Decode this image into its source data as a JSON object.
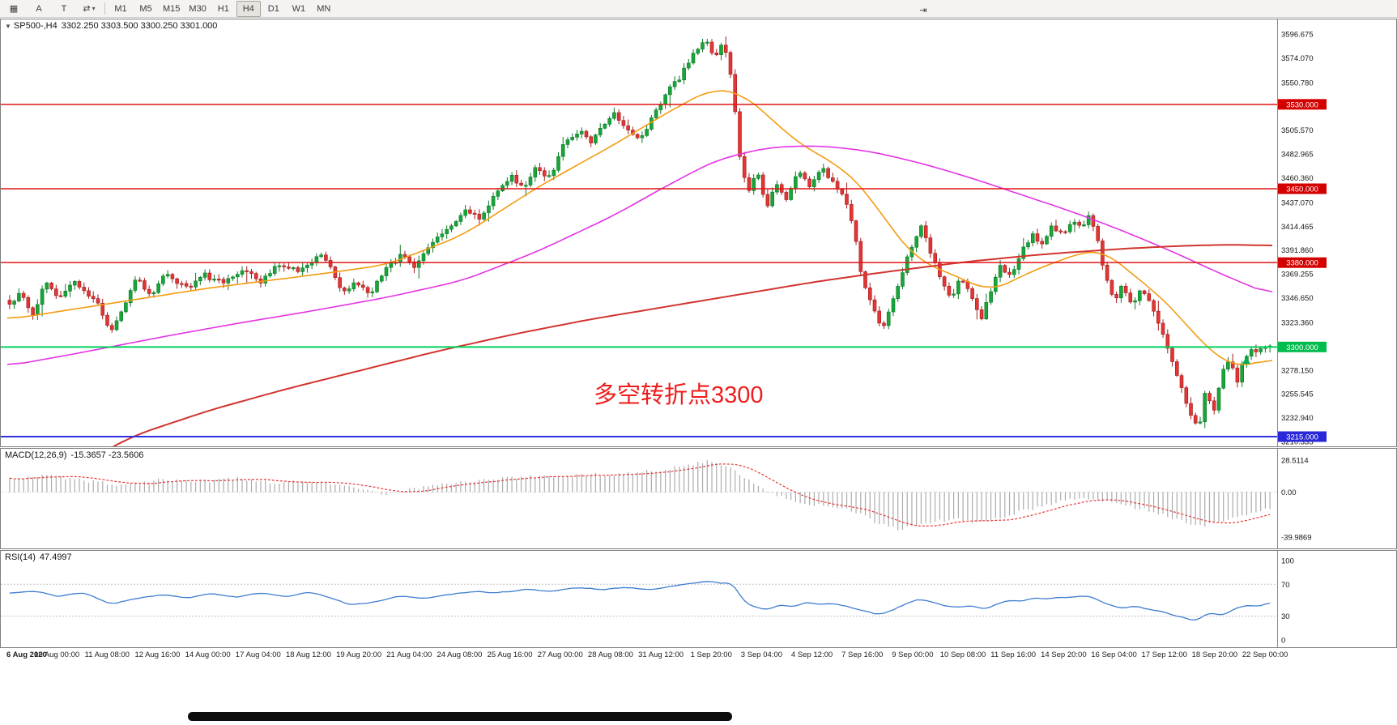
{
  "toolbar": {
    "left_icons": [
      {
        "name": "chart-grid-icon",
        "glyph": "▦"
      },
      {
        "name": "text-annotation-icon",
        "glyph": "A"
      },
      {
        "name": "text-box-icon",
        "glyph": "T"
      },
      {
        "name": "cycle-symbols-icon",
        "glyph": "⇄",
        "caret": "▾"
      }
    ],
    "timeframes": [
      "M1",
      "M5",
      "M15",
      "M30",
      "H1",
      "H4",
      "D1",
      "W1",
      "MN"
    ],
    "active_timeframe": "H4",
    "right_icons": [
      {
        "name": "chart-shift-icon",
        "glyph": "⇥"
      }
    ]
  },
  "price_panel": {
    "header": {
      "marker": "▼",
      "symbol": "SP500-,H4",
      "ohlc": "3302.250 3303.500 3300.250 3301.000"
    },
    "annotation": {
      "text": "多空转折点3300",
      "color": "#ee1c1c"
    },
    "y_ticks": [
      "3596.675",
      "3574.070",
      "3550.780",
      "3505.570",
      "3482.965",
      "3460.360",
      "3437.070",
      "3414.465",
      "3391.860",
      "3369.255",
      "3346.650",
      "3323.360",
      "3278.150",
      "3255.545",
      "3232.940",
      "3210.335"
    ],
    "levels": [
      {
        "label": "3530.000",
        "price": 3530,
        "color": "#d40000",
        "line": "#e01414",
        "width": 1.5
      },
      {
        "label": "3450.000",
        "price": 3450,
        "color": "#d40000",
        "line": "#e01414",
        "width": 1.5
      },
      {
        "label": "3380.000",
        "price": 3380,
        "color": "#d40000",
        "line": "#e01414",
        "width": 1.5
      },
      {
        "label": "3300.000",
        "price": 3300,
        "color": "#00bd4e",
        "line": "#00d25c",
        "width": 2
      },
      {
        "label": "3215.000",
        "price": 3215,
        "color": "#2828d8",
        "line": "#3030e0",
        "width": 2
      }
    ]
  },
  "chart_data": {
    "type": "candlestick",
    "symbol": "SP500-",
    "timeframe": "H4",
    "title": "SP500-,H4",
    "ohlc_current": {
      "open": 3302.25,
      "high": 3303.5,
      "low": 3300.25,
      "close": 3301.0
    },
    "x_range": {
      "start": "6 Aug 2020",
      "end": "22 Sep 2020"
    },
    "ylim": [
      3205.8,
      3610.5
    ],
    "num_candles": 272,
    "horizontal_levels": [
      3530,
      3450,
      3380,
      3300,
      3215
    ],
    "colors": {
      "bull_fill": "#19a53a",
      "bull_stroke": "#0b7a26",
      "bear_fill": "#e23535",
      "bear_stroke": "#a31d1d",
      "ma_fast": "#f39c12",
      "ma_mid": "#e333e3",
      "ma_slow": "#d1342f",
      "macd_hist": "#ababab",
      "macd_signal": "#e23b3b",
      "rsi_line": "#3f7cd0"
    },
    "close_anchors": [
      [
        0.0,
        3338
      ],
      [
        0.008,
        3352
      ],
      [
        0.018,
        3330
      ],
      [
        0.028,
        3360
      ],
      [
        0.04,
        3345
      ],
      [
        0.052,
        3362
      ],
      [
        0.062,
        3350
      ],
      [
        0.07,
        3340
      ],
      [
        0.08,
        3312
      ],
      [
        0.088,
        3332
      ],
      [
        0.1,
        3366
      ],
      [
        0.112,
        3350
      ],
      [
        0.125,
        3370
      ],
      [
        0.14,
        3356
      ],
      [
        0.155,
        3368
      ],
      [
        0.17,
        3360
      ],
      [
        0.185,
        3374
      ],
      [
        0.2,
        3362
      ],
      [
        0.215,
        3380
      ],
      [
        0.23,
        3371
      ],
      [
        0.245,
        3388
      ],
      [
        0.255,
        3374
      ],
      [
        0.265,
        3352
      ],
      [
        0.275,
        3363
      ],
      [
        0.285,
        3348
      ],
      [
        0.297,
        3372
      ],
      [
        0.31,
        3386
      ],
      [
        0.322,
        3377
      ],
      [
        0.335,
        3398
      ],
      [
        0.35,
        3412
      ],
      [
        0.362,
        3432
      ],
      [
        0.372,
        3420
      ],
      [
        0.385,
        3446
      ],
      [
        0.398,
        3462
      ],
      [
        0.408,
        3448
      ],
      [
        0.418,
        3472
      ],
      [
        0.428,
        3460
      ],
      [
        0.44,
        3492
      ],
      [
        0.452,
        3506
      ],
      [
        0.462,
        3495
      ],
      [
        0.472,
        3513
      ],
      [
        0.48,
        3522
      ],
      [
        0.49,
        3504
      ],
      [
        0.5,
        3495
      ],
      [
        0.512,
        3521
      ],
      [
        0.522,
        3542
      ],
      [
        0.532,
        3556
      ],
      [
        0.545,
        3582
      ],
      [
        0.553,
        3593
      ],
      [
        0.559,
        3575
      ],
      [
        0.566,
        3589
      ],
      [
        0.573,
        3556
      ],
      [
        0.579,
        3480
      ],
      [
        0.586,
        3446
      ],
      [
        0.593,
        3467
      ],
      [
        0.601,
        3432
      ],
      [
        0.609,
        3456
      ],
      [
        0.616,
        3438
      ],
      [
        0.625,
        3468
      ],
      [
        0.635,
        3450
      ],
      [
        0.645,
        3470
      ],
      [
        0.653,
        3456
      ],
      [
        0.661,
        3446
      ],
      [
        0.669,
        3418
      ],
      [
        0.677,
        3360
      ],
      [
        0.685,
        3335
      ],
      [
        0.693,
        3316
      ],
      [
        0.701,
        3346
      ],
      [
        0.709,
        3374
      ],
      [
        0.717,
        3400
      ],
      [
        0.723,
        3416
      ],
      [
        0.731,
        3390
      ],
      [
        0.739,
        3364
      ],
      [
        0.747,
        3344
      ],
      [
        0.755,
        3368
      ],
      [
        0.763,
        3350
      ],
      [
        0.771,
        3328
      ],
      [
        0.779,
        3356
      ],
      [
        0.787,
        3378
      ],
      [
        0.795,
        3364
      ],
      [
        0.803,
        3392
      ],
      [
        0.811,
        3406
      ],
      [
        0.819,
        3398
      ],
      [
        0.827,
        3416
      ],
      [
        0.835,
        3407
      ],
      [
        0.843,
        3421
      ],
      [
        0.851,
        3411
      ],
      [
        0.857,
        3426
      ],
      [
        0.863,
        3404
      ],
      [
        0.869,
        3368
      ],
      [
        0.876,
        3344
      ],
      [
        0.883,
        3358
      ],
      [
        0.891,
        3338
      ],
      [
        0.898,
        3356
      ],
      [
        0.905,
        3340
      ],
      [
        0.912,
        3320
      ],
      [
        0.92,
        3296
      ],
      [
        0.928,
        3268
      ],
      [
        0.936,
        3240
      ],
      [
        0.943,
        3221
      ],
      [
        0.949,
        3258
      ],
      [
        0.955,
        3238
      ],
      [
        0.961,
        3272
      ],
      [
        0.968,
        3288
      ],
      [
        0.974,
        3266
      ],
      [
        0.98,
        3292
      ],
      [
        0.988,
        3297
      ],
      [
        1.0,
        3301
      ]
    ],
    "ma_fast_anchors": [
      [
        0,
        3326
      ],
      [
        0.08,
        3341
      ],
      [
        0.16,
        3356
      ],
      [
        0.24,
        3368
      ],
      [
        0.3,
        3378
      ],
      [
        0.36,
        3406
      ],
      [
        0.42,
        3452
      ],
      [
        0.48,
        3492
      ],
      [
        0.52,
        3521
      ],
      [
        0.557,
        3545
      ],
      [
        0.58,
        3541
      ],
      [
        0.6,
        3521
      ],
      [
        0.62,
        3498
      ],
      [
        0.64,
        3483
      ],
      [
        0.66,
        3470
      ],
      [
        0.68,
        3446
      ],
      [
        0.7,
        3410
      ],
      [
        0.72,
        3382
      ],
      [
        0.74,
        3372
      ],
      [
        0.76,
        3362
      ],
      [
        0.777,
        3352
      ],
      [
        0.79,
        3360
      ],
      [
        0.81,
        3372
      ],
      [
        0.83,
        3381
      ],
      [
        0.85,
        3390
      ],
      [
        0.866,
        3392
      ],
      [
        0.88,
        3379
      ],
      [
        0.895,
        3363
      ],
      [
        0.91,
        3350
      ],
      [
        0.925,
        3331
      ],
      [
        0.94,
        3310
      ],
      [
        0.955,
        3292
      ],
      [
        0.97,
        3281
      ],
      [
        0.985,
        3283
      ],
      [
        1,
        3291
      ]
    ],
    "ma_mid_anchors": [
      [
        0,
        3282
      ],
      [
        0.06,
        3295
      ],
      [
        0.12,
        3309
      ],
      [
        0.18,
        3322
      ],
      [
        0.24,
        3334
      ],
      [
        0.3,
        3347
      ],
      [
        0.36,
        3363
      ],
      [
        0.42,
        3391
      ],
      [
        0.48,
        3425
      ],
      [
        0.52,
        3452
      ],
      [
        0.56,
        3477
      ],
      [
        0.6,
        3489
      ],
      [
        0.64,
        3491
      ],
      [
        0.68,
        3486
      ],
      [
        0.72,
        3475
      ],
      [
        0.76,
        3461
      ],
      [
        0.8,
        3445
      ],
      [
        0.84,
        3429
      ],
      [
        0.88,
        3411
      ],
      [
        0.92,
        3391
      ],
      [
        0.96,
        3369
      ],
      [
        1,
        3349
      ]
    ],
    "ma_slow_anchors": [
      [
        0,
        3148
      ],
      [
        0.06,
        3190
      ],
      [
        0.1,
        3216
      ],
      [
        0.16,
        3240
      ],
      [
        0.22,
        3260
      ],
      [
        0.28,
        3278
      ],
      [
        0.34,
        3296
      ],
      [
        0.4,
        3312
      ],
      [
        0.46,
        3326
      ],
      [
        0.52,
        3338
      ],
      [
        0.58,
        3350
      ],
      [
        0.64,
        3362
      ],
      [
        0.7,
        3372
      ],
      [
        0.76,
        3381
      ],
      [
        0.82,
        3388
      ],
      [
        0.88,
        3393
      ],
      [
        0.93,
        3396
      ],
      [
        0.97,
        3397
      ],
      [
        1,
        3396
      ]
    ]
  },
  "macd_panel": {
    "name": "MACD(12,26,9)",
    "values": "-15.3657 -23.5606",
    "y_labels": [
      {
        "label": "28.5114",
        "value": 28.5114
      },
      {
        "label": "0.00",
        "value": 0
      },
      {
        "label": "-39.9869",
        "value": -39.9869
      }
    ],
    "ylim": [
      -50,
      38.5
    ],
    "hist_anchors": [
      [
        0,
        12
      ],
      [
        0.03,
        15
      ],
      [
        0.06,
        10
      ],
      [
        0.09,
        6
      ],
      [
        0.12,
        12
      ],
      [
        0.15,
        9
      ],
      [
        0.18,
        12
      ],
      [
        0.21,
        8
      ],
      [
        0.24,
        10
      ],
      [
        0.27,
        4
      ],
      [
        0.285,
        1
      ],
      [
        0.3,
        -2
      ],
      [
        0.315,
        2
      ],
      [
        0.33,
        5
      ],
      [
        0.36,
        9
      ],
      [
        0.4,
        13
      ],
      [
        0.44,
        15
      ],
      [
        0.48,
        16
      ],
      [
        0.52,
        20
      ],
      [
        0.553,
        27.5
      ],
      [
        0.57,
        24
      ],
      [
        0.585,
        12
      ],
      [
        0.6,
        2
      ],
      [
        0.615,
        -6
      ],
      [
        0.63,
        -10
      ],
      [
        0.645,
        -12
      ],
      [
        0.66,
        -14
      ],
      [
        0.675,
        -20
      ],
      [
        0.69,
        -28
      ],
      [
        0.705,
        -33
      ],
      [
        0.72,
        -30
      ],
      [
        0.735,
        -26
      ],
      [
        0.75,
        -24
      ],
      [
        0.765,
        -27
      ],
      [
        0.78,
        -25
      ],
      [
        0.8,
        -18
      ],
      [
        0.82,
        -12
      ],
      [
        0.84,
        -7
      ],
      [
        0.855,
        -5
      ],
      [
        0.87,
        -8
      ],
      [
        0.885,
        -12
      ],
      [
        0.9,
        -15
      ],
      [
        0.915,
        -20
      ],
      [
        0.93,
        -26
      ],
      [
        0.945,
        -30
      ],
      [
        0.96,
        -27
      ],
      [
        0.975,
        -22
      ],
      [
        0.99,
        -17
      ],
      [
        1,
        -15.4
      ]
    ]
  },
  "rsi_panel": {
    "name": "RSI(14)",
    "value": "47.4997",
    "y_labels": [
      {
        "label": "100",
        "value": 100
      },
      {
        "label": "70",
        "value": 70
      },
      {
        "label": "30",
        "value": 30
      },
      {
        "label": "0",
        "value": 0
      }
    ],
    "levels": [
      70,
      30
    ],
    "ylim": [
      -9,
      112
    ],
    "line_anchors": [
      [
        0,
        58
      ],
      [
        0.02,
        62
      ],
      [
        0.04,
        55
      ],
      [
        0.06,
        60
      ],
      [
        0.08,
        45
      ],
      [
        0.1,
        52
      ],
      [
        0.12,
        57
      ],
      [
        0.14,
        53
      ],
      [
        0.16,
        58
      ],
      [
        0.18,
        54
      ],
      [
        0.2,
        59
      ],
      [
        0.22,
        55
      ],
      [
        0.24,
        60
      ],
      [
        0.26,
        50
      ],
      [
        0.27,
        44
      ],
      [
        0.29,
        48
      ],
      [
        0.31,
        55
      ],
      [
        0.33,
        52
      ],
      [
        0.35,
        58
      ],
      [
        0.37,
        61
      ],
      [
        0.39,
        59
      ],
      [
        0.41,
        64
      ],
      [
        0.43,
        61
      ],
      [
        0.45,
        66
      ],
      [
        0.47,
        63
      ],
      [
        0.49,
        66
      ],
      [
        0.51,
        63
      ],
      [
        0.53,
        69
      ],
      [
        0.545,
        72
      ],
      [
        0.556,
        75
      ],
      [
        0.565,
        71
      ],
      [
        0.574,
        73
      ],
      [
        0.582,
        47
      ],
      [
        0.592,
        42
      ],
      [
        0.602,
        38
      ],
      [
        0.612,
        45
      ],
      [
        0.622,
        41
      ],
      [
        0.632,
        48
      ],
      [
        0.642,
        44
      ],
      [
        0.652,
        47
      ],
      [
        0.662,
        43
      ],
      [
        0.672,
        39
      ],
      [
        0.682,
        35
      ],
      [
        0.692,
        32
      ],
      [
        0.702,
        39
      ],
      [
        0.712,
        46
      ],
      [
        0.722,
        52
      ],
      [
        0.732,
        48
      ],
      [
        0.742,
        42
      ],
      [
        0.752,
        40
      ],
      [
        0.762,
        44
      ],
      [
        0.772,
        38
      ],
      [
        0.782,
        45
      ],
      [
        0.792,
        50
      ],
      [
        0.802,
        48
      ],
      [
        0.812,
        53
      ],
      [
        0.822,
        51
      ],
      [
        0.832,
        55
      ],
      [
        0.842,
        53
      ],
      [
        0.852,
        57
      ],
      [
        0.862,
        51
      ],
      [
        0.872,
        44
      ],
      [
        0.882,
        40
      ],
      [
        0.892,
        43
      ],
      [
        0.902,
        40
      ],
      [
        0.912,
        36
      ],
      [
        0.922,
        32
      ],
      [
        0.932,
        28
      ],
      [
        0.942,
        24
      ],
      [
        0.952,
        34
      ],
      [
        0.962,
        30
      ],
      [
        0.972,
        40
      ],
      [
        0.982,
        44
      ],
      [
        0.99,
        42
      ],
      [
        1,
        47.5
      ]
    ]
  },
  "x_axis": {
    "labels": [
      "6 Aug 2020",
      "10 Aug 00:00",
      "11 Aug 08:00",
      "12 Aug 16:00",
      "14 Aug 00:00",
      "17 Aug 04:00",
      "18 Aug 12:00",
      "19 Aug 20:00",
      "21 Aug 04:00",
      "24 Aug 08:00",
      "25 Aug 16:00",
      "27 Aug 00:00",
      "28 Aug 08:00",
      "31 Aug 12:00",
      "1 Sep 20:00",
      "3 Sep 04:00",
      "4 Sep 12:00",
      "7 Sep 16:00",
      "9 Sep 00:00",
      "10 Sep 08:00",
      "11 Sep 16:00",
      "14 Sep 20:00",
      "16 Sep 04:00",
      "17 Sep 12:00",
      "18 Sep 20:00",
      "22 Sep 00:00"
    ]
  }
}
